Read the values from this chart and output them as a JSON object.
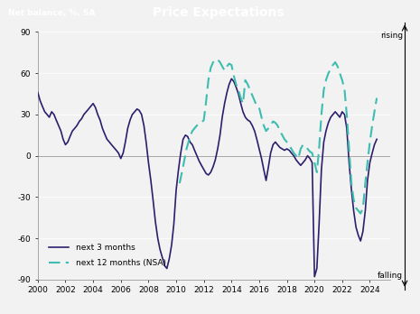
{
  "title": "Price Expectations",
  "ylabel": "Net balance, %, SA",
  "ylim": [
    -90,
    90
  ],
  "yticks": [
    -90,
    -60,
    -30,
    0,
    30,
    60,
    90
  ],
  "xlim": [
    2000,
    2025.5
  ],
  "xticks": [
    2000,
    2002,
    2004,
    2006,
    2008,
    2010,
    2012,
    2014,
    2016,
    2018,
    2020,
    2022,
    2024
  ],
  "background_color": "#f2f2f2",
  "header_bg": "#111111",
  "header_text_color": "white",
  "line1_color": "#2d1e6b",
  "line2_color": "#3dbdb0",
  "legend1": "next 3 months",
  "legend2": "next 12 months (NSA)",
  "rising_label": "rising",
  "falling_label": "falling",
  "series1": [
    [
      2000.0,
      46
    ],
    [
      2000.17,
      40
    ],
    [
      2000.33,
      36
    ],
    [
      2000.5,
      32
    ],
    [
      2000.67,
      30
    ],
    [
      2000.83,
      28
    ],
    [
      2001.0,
      32
    ],
    [
      2001.17,
      30
    ],
    [
      2001.33,
      26
    ],
    [
      2001.5,
      22
    ],
    [
      2001.67,
      18
    ],
    [
      2001.83,
      12
    ],
    [
      2002.0,
      8
    ],
    [
      2002.17,
      10
    ],
    [
      2002.33,
      14
    ],
    [
      2002.5,
      18
    ],
    [
      2002.67,
      20
    ],
    [
      2002.83,
      22
    ],
    [
      2003.0,
      25
    ],
    [
      2003.17,
      27
    ],
    [
      2003.33,
      30
    ],
    [
      2003.5,
      32
    ],
    [
      2003.67,
      34
    ],
    [
      2003.83,
      36
    ],
    [
      2004.0,
      38
    ],
    [
      2004.17,
      35
    ],
    [
      2004.33,
      30
    ],
    [
      2004.5,
      26
    ],
    [
      2004.67,
      20
    ],
    [
      2004.83,
      16
    ],
    [
      2005.0,
      12
    ],
    [
      2005.17,
      10
    ],
    [
      2005.33,
      8
    ],
    [
      2005.5,
      6
    ],
    [
      2005.67,
      4
    ],
    [
      2005.83,
      2
    ],
    [
      2006.0,
      -2
    ],
    [
      2006.17,
      2
    ],
    [
      2006.33,
      10
    ],
    [
      2006.5,
      20
    ],
    [
      2006.67,
      26
    ],
    [
      2006.83,
      30
    ],
    [
      2007.0,
      32
    ],
    [
      2007.17,
      34
    ],
    [
      2007.33,
      33
    ],
    [
      2007.5,
      30
    ],
    [
      2007.67,
      22
    ],
    [
      2007.83,
      10
    ],
    [
      2008.0,
      -5
    ],
    [
      2008.17,
      -18
    ],
    [
      2008.33,
      -32
    ],
    [
      2008.5,
      -48
    ],
    [
      2008.67,
      -60
    ],
    [
      2008.83,
      -68
    ],
    [
      2009.0,
      -74
    ],
    [
      2009.17,
      -80
    ],
    [
      2009.33,
      -82
    ],
    [
      2009.5,
      -75
    ],
    [
      2009.67,
      -65
    ],
    [
      2009.83,
      -50
    ],
    [
      2010.0,
      -25
    ],
    [
      2010.17,
      -10
    ],
    [
      2010.33,
      2
    ],
    [
      2010.5,
      12
    ],
    [
      2010.67,
      15
    ],
    [
      2010.83,
      14
    ],
    [
      2011.0,
      10
    ],
    [
      2011.17,
      8
    ],
    [
      2011.33,
      4
    ],
    [
      2011.5,
      0
    ],
    [
      2011.67,
      -4
    ],
    [
      2011.83,
      -7
    ],
    [
      2012.0,
      -10
    ],
    [
      2012.17,
      -13
    ],
    [
      2012.33,
      -14
    ],
    [
      2012.5,
      -12
    ],
    [
      2012.67,
      -8
    ],
    [
      2012.83,
      -3
    ],
    [
      2013.0,
      5
    ],
    [
      2013.17,
      15
    ],
    [
      2013.33,
      28
    ],
    [
      2013.5,
      38
    ],
    [
      2013.67,
      46
    ],
    [
      2013.83,
      52
    ],
    [
      2014.0,
      56
    ],
    [
      2014.17,
      54
    ],
    [
      2014.33,
      50
    ],
    [
      2014.5,
      45
    ],
    [
      2014.67,
      38
    ],
    [
      2014.83,
      32
    ],
    [
      2015.0,
      28
    ],
    [
      2015.17,
      26
    ],
    [
      2015.33,
      25
    ],
    [
      2015.5,
      22
    ],
    [
      2015.67,
      18
    ],
    [
      2015.83,
      12
    ],
    [
      2016.0,
      5
    ],
    [
      2016.17,
      -2
    ],
    [
      2016.33,
      -10
    ],
    [
      2016.5,
      -18
    ],
    [
      2016.67,
      -8
    ],
    [
      2016.83,
      2
    ],
    [
      2017.0,
      8
    ],
    [
      2017.17,
      10
    ],
    [
      2017.33,
      8
    ],
    [
      2017.5,
      6
    ],
    [
      2017.67,
      5
    ],
    [
      2017.83,
      4
    ],
    [
      2018.0,
      5
    ],
    [
      2018.17,
      4
    ],
    [
      2018.33,
      2
    ],
    [
      2018.5,
      0
    ],
    [
      2018.67,
      -3
    ],
    [
      2018.83,
      -5
    ],
    [
      2019.0,
      -7
    ],
    [
      2019.17,
      -5
    ],
    [
      2019.33,
      -3
    ],
    [
      2019.5,
      0
    ],
    [
      2019.67,
      -2
    ],
    [
      2019.83,
      -5
    ],
    [
      2020.0,
      -88
    ],
    [
      2020.17,
      -82
    ],
    [
      2020.33,
      -50
    ],
    [
      2020.5,
      -10
    ],
    [
      2020.67,
      10
    ],
    [
      2020.83,
      18
    ],
    [
      2021.0,
      24
    ],
    [
      2021.17,
      28
    ],
    [
      2021.33,
      30
    ],
    [
      2021.5,
      32
    ],
    [
      2021.67,
      30
    ],
    [
      2021.83,
      28
    ],
    [
      2022.0,
      32
    ],
    [
      2022.17,
      30
    ],
    [
      2022.33,
      20
    ],
    [
      2022.5,
      -5
    ],
    [
      2022.67,
      -25
    ],
    [
      2022.83,
      -40
    ],
    [
      2023.0,
      -52
    ],
    [
      2023.17,
      -58
    ],
    [
      2023.33,
      -62
    ],
    [
      2023.5,
      -55
    ],
    [
      2023.67,
      -40
    ],
    [
      2023.83,
      -18
    ],
    [
      2024.0,
      -5
    ],
    [
      2024.17,
      2
    ],
    [
      2024.33,
      8
    ],
    [
      2024.5,
      12
    ]
  ],
  "series2": [
    [
      2010.25,
      -20
    ],
    [
      2010.5,
      -8
    ],
    [
      2010.75,
      5
    ],
    [
      2011.0,
      14
    ],
    [
      2011.17,
      18
    ],
    [
      2011.33,
      20
    ],
    [
      2011.5,
      22
    ],
    [
      2011.67,
      23
    ],
    [
      2011.83,
      24
    ],
    [
      2012.0,
      26
    ],
    [
      2012.17,
      40
    ],
    [
      2012.33,
      55
    ],
    [
      2012.5,
      64
    ],
    [
      2012.67,
      68
    ],
    [
      2012.83,
      70
    ],
    [
      2013.0,
      70
    ],
    [
      2013.17,
      68
    ],
    [
      2013.33,
      65
    ],
    [
      2013.5,
      62
    ],
    [
      2013.67,
      65
    ],
    [
      2013.83,
      67
    ],
    [
      2014.0,
      66
    ],
    [
      2014.17,
      58
    ],
    [
      2014.33,
      52
    ],
    [
      2014.5,
      48
    ],
    [
      2014.67,
      42
    ],
    [
      2014.83,
      38
    ],
    [
      2015.0,
      55
    ],
    [
      2015.17,
      52
    ],
    [
      2015.33,
      48
    ],
    [
      2015.5,
      44
    ],
    [
      2015.67,
      40
    ],
    [
      2015.83,
      36
    ],
    [
      2016.0,
      35
    ],
    [
      2016.17,
      28
    ],
    [
      2016.33,
      22
    ],
    [
      2016.5,
      18
    ],
    [
      2016.67,
      20
    ],
    [
      2016.83,
      22
    ],
    [
      2017.0,
      25
    ],
    [
      2017.17,
      24
    ],
    [
      2017.33,
      22
    ],
    [
      2017.5,
      18
    ],
    [
      2017.67,
      15
    ],
    [
      2017.83,
      12
    ],
    [
      2018.0,
      10
    ],
    [
      2018.17,
      8
    ],
    [
      2018.33,
      5
    ],
    [
      2018.5,
      2
    ],
    [
      2018.67,
      0
    ],
    [
      2018.83,
      -2
    ],
    [
      2019.0,
      5
    ],
    [
      2019.17,
      8
    ],
    [
      2019.33,
      7
    ],
    [
      2019.5,
      5
    ],
    [
      2019.67,
      3
    ],
    [
      2019.83,
      2
    ],
    [
      2020.0,
      -5
    ],
    [
      2020.17,
      -12
    ],
    [
      2020.33,
      5
    ],
    [
      2020.5,
      30
    ],
    [
      2020.67,
      48
    ],
    [
      2020.83,
      55
    ],
    [
      2021.0,
      60
    ],
    [
      2021.17,
      63
    ],
    [
      2021.33,
      66
    ],
    [
      2021.5,
      68
    ],
    [
      2021.67,
      65
    ],
    [
      2021.83,
      60
    ],
    [
      2022.0,
      55
    ],
    [
      2022.17,
      48
    ],
    [
      2022.33,
      30
    ],
    [
      2022.5,
      5
    ],
    [
      2022.67,
      -20
    ],
    [
      2022.83,
      -32
    ],
    [
      2023.0,
      -38
    ],
    [
      2023.17,
      -40
    ],
    [
      2023.33,
      -42
    ],
    [
      2023.5,
      -38
    ],
    [
      2023.67,
      -20
    ],
    [
      2023.83,
      -5
    ],
    [
      2024.0,
      10
    ],
    [
      2024.17,
      22
    ],
    [
      2024.33,
      32
    ],
    [
      2024.5,
      42
    ]
  ]
}
